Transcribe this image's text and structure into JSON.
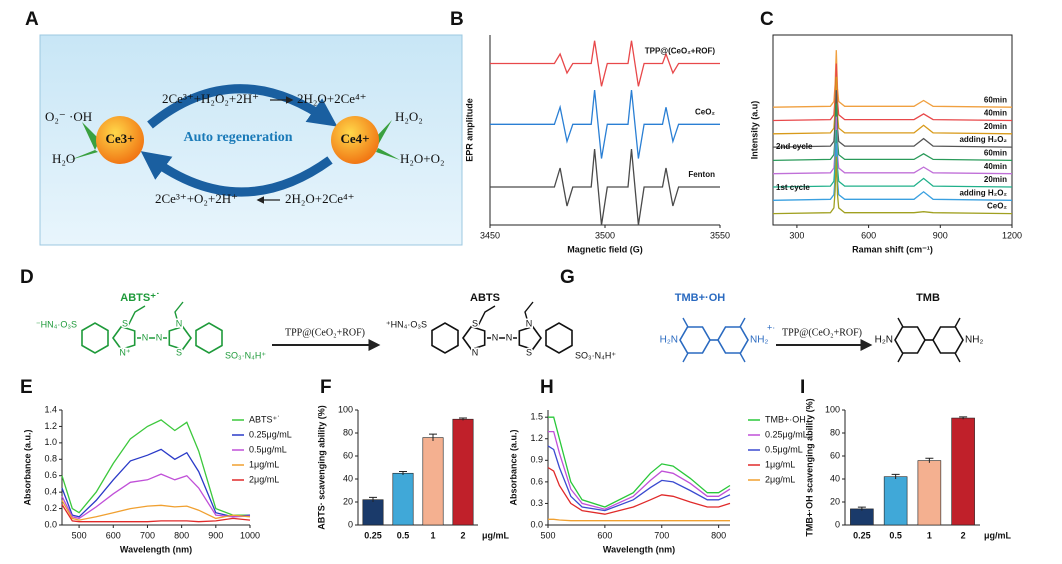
{
  "chart_data": [
    {
      "type": "line",
      "panel": "B",
      "xlabel": "Magnetic field (G)",
      "ylabel": "EPR amplitude",
      "xlim": [
        3450,
        3550
      ],
      "ylim": [
        0,
        10
      ],
      "xticks": [
        3450,
        3500,
        3550
      ],
      "x": [
        3450,
        3478,
        3480.5,
        3483.5,
        3486,
        3494,
        3495.5,
        3498.5,
        3501,
        3510,
        3511.5,
        3514.5,
        3517,
        3525,
        3526.5,
        3529.5,
        3532,
        3550
      ],
      "series": [
        {
          "name": "TPP@(CeO₂+ROF)",
          "color": "#e8484a",
          "values": [
            8.5,
            8.5,
            9.0,
            8.0,
            8.5,
            8.5,
            9.7,
            7.3,
            8.5,
            8.5,
            9.7,
            7.3,
            8.5,
            8.5,
            9.0,
            8.0,
            8.5,
            8.5
          ]
        },
        {
          "name": "CeO₂",
          "color": "#2a7fd4",
          "values": [
            5.3,
            5.3,
            6.2,
            4.4,
            5.3,
            5.3,
            7.1,
            3.5,
            5.3,
            5.3,
            7.1,
            3.5,
            5.3,
            5.3,
            6.2,
            4.4,
            5.3,
            5.3
          ]
        },
        {
          "name": "Fenton",
          "color": "#4a4a4a",
          "values": [
            2,
            2,
            3,
            1,
            2,
            2,
            4,
            0,
            2,
            2,
            4,
            0,
            2,
            2,
            3,
            1,
            2,
            2
          ]
        }
      ]
    },
    {
      "type": "line",
      "panel": "C",
      "xlabel": "Raman shift (cm⁻¹)",
      "ylabel": "Intensity (a.u)",
      "xlim": [
        200,
        1200
      ],
      "ylim": [
        0,
        10
      ],
      "xticks": [
        300,
        600,
        900,
        1200
      ],
      "x": [
        200,
        440,
        455,
        460,
        465,
        470,
        475,
        500,
        790,
        830,
        870,
        1200
      ],
      "annotations": [
        "2nd cycle",
        "1st cycle"
      ],
      "series": [
        {
          "name": "60min",
          "color": "#f0a040",
          "values": [
            6.2,
            6.25,
            6.5,
            7.4,
            9.2,
            7.2,
            6.5,
            6.25,
            6.25,
            6.55,
            6.25,
            6.2
          ]
        },
        {
          "name": "40min",
          "color": "#e8484a",
          "values": [
            5.5,
            5.55,
            5.8,
            6.7,
            8.5,
            6.5,
            5.8,
            5.55,
            5.55,
            5.85,
            5.55,
            5.5
          ]
        },
        {
          "name": "20min",
          "color": "#d89a1a",
          "values": [
            4.8,
            4.85,
            5.1,
            6.0,
            7.8,
            5.8,
            5.1,
            4.85,
            4.85,
            5.25,
            4.85,
            4.8
          ]
        },
        {
          "name": "adding H₂O₂",
          "color": "#555555",
          "values": [
            4.1,
            4.15,
            4.4,
            5.3,
            7.1,
            5.1,
            4.4,
            4.15,
            4.15,
            4.55,
            4.15,
            4.1
          ]
        },
        {
          "name": "60min",
          "color": "#2a9a5a",
          "values": [
            3.4,
            3.45,
            3.7,
            4.6,
            6.4,
            4.4,
            3.7,
            3.45,
            3.45,
            3.75,
            3.45,
            3.4
          ]
        },
        {
          "name": "40min",
          "color": "#c070d8",
          "values": [
            2.7,
            2.75,
            3.0,
            3.9,
            5.7,
            3.7,
            3.0,
            2.75,
            2.75,
            3.05,
            2.75,
            2.7
          ]
        },
        {
          "name": "20min",
          "color": "#1fb08a",
          "values": [
            2.0,
            2.05,
            2.3,
            3.2,
            5.0,
            3.0,
            2.3,
            2.05,
            2.05,
            2.45,
            2.05,
            2.0
          ]
        },
        {
          "name": "adding H₂O₂",
          "color": "#3aa0e0",
          "values": [
            1.3,
            1.35,
            1.6,
            2.5,
            4.3,
            2.3,
            1.6,
            1.35,
            1.35,
            1.75,
            1.35,
            1.3
          ]
        },
        {
          "name": "CeO₂",
          "color": "#a0a020",
          "values": [
            0.6,
            0.65,
            0.9,
            1.8,
            3.6,
            1.6,
            0.9,
            0.65,
            0.65,
            0.7,
            0.65,
            0.6
          ]
        }
      ]
    },
    {
      "type": "line",
      "panel": "E",
      "xlabel": "Wavelength (nm)",
      "ylabel": "Absorbance (a.u.)",
      "legend": "upper right",
      "xlim": [
        450,
        1000
      ],
      "ylim": [
        0,
        1.4
      ],
      "xticks": [
        500,
        600,
        700,
        800,
        900,
        1000
      ],
      "yticks": [
        {
          "value": 0,
          "label": "0.0"
        },
        0.2,
        0.4,
        0.6,
        0.8,
        {
          "value": 1,
          "label": "1.0"
        },
        1.2,
        1.4
      ],
      "x": [
        450,
        480,
        500,
        550,
        600,
        650,
        700,
        740,
        780,
        815,
        850,
        900,
        950,
        1000
      ],
      "series": [
        {
          "name": "ABTS⁺˙",
          "color": "#3cc83c",
          "values": [
            0.6,
            0.2,
            0.15,
            0.4,
            0.75,
            1.05,
            1.2,
            1.28,
            1.15,
            1.25,
            0.9,
            0.2,
            0.12,
            0.12
          ]
        },
        {
          "name": "0.25μg/mL",
          "color": "#2a3ac8",
          "values": [
            0.45,
            0.12,
            0.1,
            0.3,
            0.55,
            0.78,
            0.85,
            0.92,
            0.8,
            0.88,
            0.65,
            0.15,
            0.1,
            0.12
          ]
        },
        {
          "name": "0.5μg/mL",
          "color": "#c050d8",
          "values": [
            0.35,
            0.1,
            0.08,
            0.22,
            0.38,
            0.52,
            0.55,
            0.62,
            0.55,
            0.6,
            0.45,
            0.12,
            0.1,
            0.11
          ]
        },
        {
          "name": "1μg/mL",
          "color": "#f0a030",
          "values": [
            0.3,
            0.08,
            0.06,
            0.1,
            0.15,
            0.2,
            0.23,
            0.24,
            0.22,
            0.23,
            0.18,
            0.08,
            0.12,
            0.1
          ]
        },
        {
          "name": "2μg/mL",
          "color": "#e02a2a",
          "values": [
            0.25,
            0.05,
            0.04,
            0.04,
            0.04,
            0.04,
            0.04,
            0.05,
            0.05,
            0.05,
            0.04,
            0.05,
            0.08,
            0.06
          ]
        }
      ]
    },
    {
      "type": "bar",
      "panel": "F",
      "xlabel": "μg/mL",
      "ylabel": "ABTS· scavenging ability (%)",
      "categories": [
        "0.25",
        "0.5",
        "1",
        "2"
      ],
      "values": [
        22,
        45,
        76,
        92
      ],
      "errors": [
        2,
        1.5,
        3,
        1
      ],
      "colors": [
        "#1a3a6a",
        "#40a8d8",
        "#f4b090",
        "#c0202a"
      ],
      "ylim": [
        0,
        100
      ],
      "yticks": [
        0,
        20,
        40,
        60,
        80,
        100
      ]
    },
    {
      "type": "line",
      "panel": "H",
      "xlabel": "Wavelength (nm)",
      "ylabel": "Absorbance (a.u.)",
      "legend": "right",
      "xlim": [
        500,
        820
      ],
      "ylim": [
        0,
        1.6
      ],
      "xticks": [
        500,
        600,
        700,
        800
      ],
      "yticks": [
        {
          "value": 0,
          "label": "0.0"
        },
        0.3,
        0.6,
        0.9,
        1.2,
        1.5
      ],
      "x": [
        500,
        510,
        520,
        540,
        560,
        600,
        650,
        680,
        700,
        720,
        750,
        780,
        800,
        820
      ],
      "series": [
        {
          "name": "TMB+·OH",
          "color": "#2ac83a",
          "values": [
            1.5,
            1.5,
            1.2,
            0.6,
            0.35,
            0.25,
            0.45,
            0.72,
            0.85,
            0.82,
            0.65,
            0.45,
            0.45,
            0.55
          ]
        },
        {
          "name": "0.25μg/mL",
          "color": "#c050d8",
          "values": [
            1.3,
            1.3,
            1.0,
            0.5,
            0.3,
            0.22,
            0.4,
            0.62,
            0.75,
            0.72,
            0.58,
            0.4,
            0.4,
            0.5
          ]
        },
        {
          "name": "0.5μg/mL",
          "color": "#3a4ad0",
          "values": [
            1.1,
            1.05,
            0.8,
            0.4,
            0.25,
            0.2,
            0.35,
            0.52,
            0.62,
            0.6,
            0.48,
            0.35,
            0.35,
            0.42
          ]
        },
        {
          "name": "1μg/mL",
          "color": "#e02a2a",
          "values": [
            0.8,
            0.75,
            0.55,
            0.3,
            0.2,
            0.15,
            0.25,
            0.35,
            0.42,
            0.4,
            0.32,
            0.25,
            0.25,
            0.3
          ]
        },
        {
          "name": "2μg/mL",
          "color": "#f0a030",
          "values": [
            0.08,
            0.08,
            0.07,
            0.06,
            0.06,
            0.06,
            0.06,
            0.06,
            0.06,
            0.06,
            0.06,
            0.06,
            0.06,
            0.06
          ]
        }
      ]
    },
    {
      "type": "bar",
      "panel": "I",
      "xlabel": "μg/mL",
      "ylabel": "TMB+·OH scavenging ability (%)",
      "categories": [
        "0.25",
        "0.5",
        "1",
        "2"
      ],
      "values": [
        14,
        42,
        56,
        93
      ],
      "errors": [
        1.5,
        2,
        2,
        1
      ],
      "colors": [
        "#1a3a6a",
        "#40a8d8",
        "#f4b090",
        "#c0202a"
      ],
      "ylim": [
        0,
        100
      ],
      "yticks": [
        0,
        20,
        40,
        60,
        80,
        100
      ]
    }
  ],
  "diagrams": {
    "A": {
      "panel": "A",
      "ce3": "Ce3+",
      "ce4": "Ce4+",
      "center": "Auto regeneration",
      "top_left": "2Ce³⁺+H₂O₂+2H⁺",
      "top_right": "2H₂O+2Ce⁴⁺",
      "bottom_left": "2Ce³⁺+O₂+2H⁺",
      "bottom_right": "2H₂O+2Ce⁴⁺",
      "left_top": "O₂⁻ ·OH",
      "left_bottom": "H₂O",
      "right_top": "H₂O₂",
      "right_bottom": "H₂O+O₂"
    },
    "D": {
      "panel": "D",
      "reactant": "ABTS⁺˙",
      "product": "ABTS",
      "reagent": "TPP@(CeO₂+ROF)",
      "reactant_atoms": [
        "⁻HN₄·O₃S",
        "S",
        "N⁺",
        "N",
        "N",
        "S",
        "N",
        "SO₃·N₄H⁺"
      ],
      "product_atoms": [
        "⁺HN₄·O₃S",
        "S",
        "N",
        "N",
        "N",
        "S",
        "N",
        "SO₃·N₄H⁺"
      ]
    },
    "G": {
      "panel": "G",
      "reactant": "TMB+·OH",
      "product": "TMB",
      "reagent": "TPP@(CeO₂+ROF)",
      "reactant_atoms": [
        "H₂N",
        "NH₂",
        "+·"
      ],
      "product_atoms": [
        "H₂N",
        "NH₂"
      ]
    }
  }
}
